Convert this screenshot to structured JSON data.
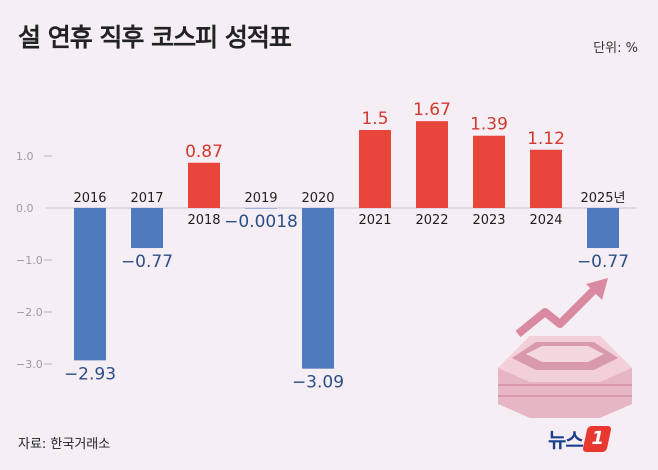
{
  "title": "설 연휴 직후 코스피 성적표",
  "unit_label": "단위: %",
  "source": "자료: 한국거래소",
  "logo": {
    "text": "뉴스",
    "mark": "1"
  },
  "colors": {
    "positive": "#e8463a",
    "negative": "#4e7bbd",
    "positive_label": "#d23a2e",
    "negative_label": "#2c4f86"
  },
  "chart_data": {
    "type": "bar",
    "categories": [
      "2016",
      "2017",
      "2018",
      "2019",
      "2020",
      "2021",
      "2022",
      "2023",
      "2024",
      "2025년"
    ],
    "values": [
      -2.93,
      -0.77,
      0.87,
      -0.0018,
      -3.09,
      1.5,
      1.67,
      1.39,
      1.12,
      -0.77
    ],
    "value_labels": [
      "−2.93",
      "−0.77",
      "0.87",
      "−0.0018",
      "−3.09",
      "1.5",
      "1.67",
      "1.39",
      "1.12",
      "−0.77"
    ],
    "yticks": [
      "1.0",
      "0.0",
      "−1.0",
      "−2.0",
      "−3.0"
    ],
    "ytick_values": [
      1,
      0,
      -1,
      -2,
      -3
    ],
    "ylim": [
      -3.3,
      2.1
    ],
    "grid": false
  }
}
